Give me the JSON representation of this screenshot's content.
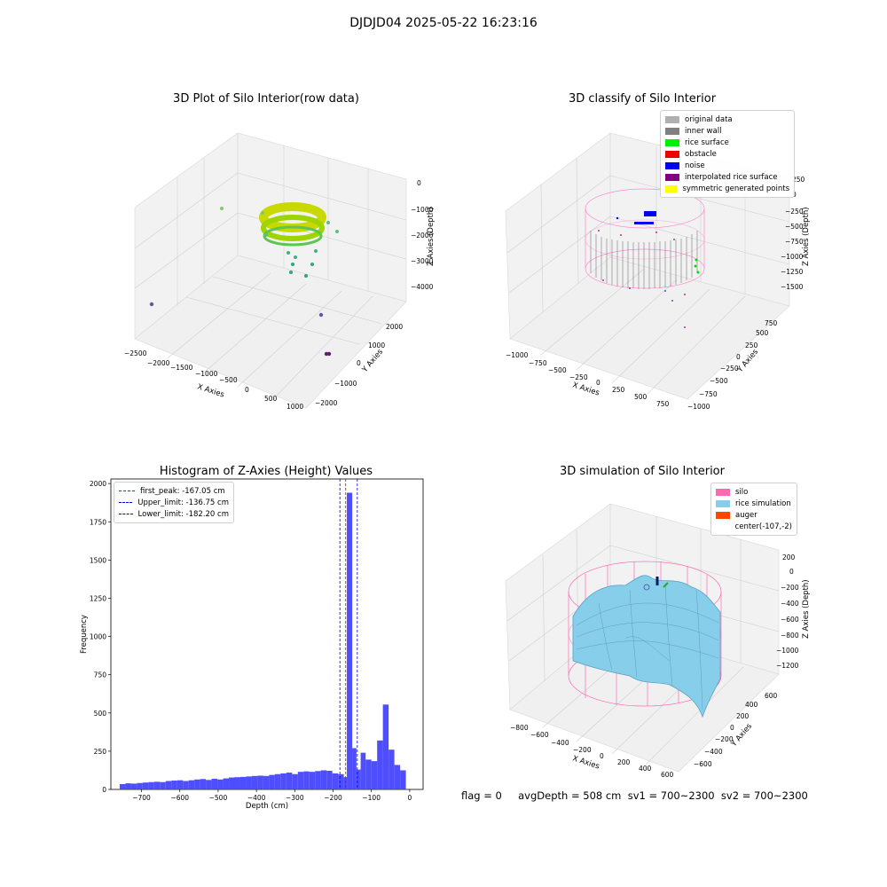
{
  "suptitle": "DJDJD04 2025-05-22 16:23:16",
  "panels": {
    "raw": {
      "title": "3D Plot of Silo Interior(row data)",
      "xlabel": "X Axies",
      "ylabel": "Y Axies",
      "zlabel": "Z Axies (Depth)",
      "xticks": [
        "−2500",
        "−2000",
        "−1500",
        "−1000",
        "−500",
        "0",
        "500",
        "1000"
      ],
      "yticks": [
        "−2000",
        "−1000",
        "0",
        "1000",
        "2000"
      ],
      "zticks": [
        "0",
        "−1000",
        "−2000",
        "−3000",
        "−4000"
      ]
    },
    "classify": {
      "title": "3D classify of Silo Interior",
      "xlabel": "X Axies",
      "ylabel": "Y Axies",
      "zlabel": "Z Axies (Depth)",
      "xticks": [
        "−1000",
        "−750",
        "−500",
        "−250",
        "0",
        "250",
        "500",
        "750"
      ],
      "yticks": [
        "−1000",
        "−750",
        "−500",
        "−250",
        "0",
        "250",
        "500",
        "750"
      ],
      "zticks": [
        "250",
        "0",
        "−250",
        "−500",
        "−750",
        "−1000",
        "−1250",
        "−1500"
      ],
      "legend": [
        {
          "label": "original data",
          "color": "#b0b0b0"
        },
        {
          "label": "inner wall",
          "color": "#808080"
        },
        {
          "label": "rice surface",
          "color": "#00ee00"
        },
        {
          "label": "obstacle",
          "color": "#ee0000"
        },
        {
          "label": "noise",
          "color": "#0000ee"
        },
        {
          "label": "interpolated rice surface",
          "color": "#800080"
        },
        {
          "label": "symmetric generated points",
          "color": "#ffff00"
        }
      ]
    },
    "simulation": {
      "title": "3D simulation of Silo Interior",
      "xlabel": "X Axies",
      "ylabel": "Y Axies",
      "zlabel": "Z Axies (Depth)",
      "xticks": [
        "−800",
        "−600",
        "−400",
        "−200",
        "0",
        "200",
        "400",
        "600"
      ],
      "yticks": [
        "−600",
        "−400",
        "−200",
        "0",
        "200",
        "400",
        "600"
      ],
      "zticks": [
        "200",
        "0",
        "−200",
        "−400",
        "−600",
        "−800",
        "−1000",
        "−1200"
      ],
      "legend": [
        {
          "label": "silo",
          "color": "#ff69b4"
        },
        {
          "label": "rice simulation",
          "color": "#87ceeb"
        },
        {
          "label": "auger",
          "color": "#ff4500"
        },
        {
          "label": "center(-107,-2)",
          "color": ""
        }
      ]
    }
  },
  "chart_data": {
    "type": "bar",
    "title": "Histogram of Z-Axies (Height) Values",
    "xlabel": "Depth (cm)",
    "ylabel": "Frequency",
    "xlim": [
      -780,
      35
    ],
    "ylim": [
      0,
      2030
    ],
    "xticks": [
      -700,
      -600,
      -500,
      -400,
      -300,
      -200,
      -100,
      0
    ],
    "yticks": [
      0,
      250,
      500,
      750,
      1000,
      1250,
      1500,
      1750,
      2000
    ],
    "bin_width": 15,
    "bar_color": "#4444ff",
    "bins": [
      {
        "x": -757,
        "v": 35
      },
      {
        "x": -742,
        "v": 40
      },
      {
        "x": -727,
        "v": 38
      },
      {
        "x": -712,
        "v": 42
      },
      {
        "x": -697,
        "v": 45
      },
      {
        "x": -682,
        "v": 48
      },
      {
        "x": -667,
        "v": 50
      },
      {
        "x": -652,
        "v": 48
      },
      {
        "x": -637,
        "v": 55
      },
      {
        "x": -622,
        "v": 58
      },
      {
        "x": -607,
        "v": 60
      },
      {
        "x": -592,
        "v": 55
      },
      {
        "x": -577,
        "v": 60
      },
      {
        "x": -562,
        "v": 65
      },
      {
        "x": -547,
        "v": 68
      },
      {
        "x": -532,
        "v": 62
      },
      {
        "x": -517,
        "v": 70
      },
      {
        "x": -502,
        "v": 65
      },
      {
        "x": -487,
        "v": 72
      },
      {
        "x": -472,
        "v": 78
      },
      {
        "x": -457,
        "v": 80
      },
      {
        "x": -442,
        "v": 82
      },
      {
        "x": -427,
        "v": 85
      },
      {
        "x": -412,
        "v": 88
      },
      {
        "x": -397,
        "v": 90
      },
      {
        "x": -382,
        "v": 88
      },
      {
        "x": -367,
        "v": 95
      },
      {
        "x": -352,
        "v": 100
      },
      {
        "x": -337,
        "v": 105
      },
      {
        "x": -322,
        "v": 110
      },
      {
        "x": -307,
        "v": 100
      },
      {
        "x": -292,
        "v": 115
      },
      {
        "x": -277,
        "v": 118
      },
      {
        "x": -262,
        "v": 115
      },
      {
        "x": -247,
        "v": 120
      },
      {
        "x": -232,
        "v": 125
      },
      {
        "x": -217,
        "v": 122
      },
      {
        "x": -202,
        "v": 105
      },
      {
        "x": -187,
        "v": 100
      },
      {
        "x": -172,
        "v": 80
      },
      {
        "x": -164,
        "v": 1940
      },
      {
        "x": -150,
        "v": 270
      },
      {
        "x": -139,
        "v": 130
      },
      {
        "x": -128,
        "v": 240
      },
      {
        "x": -115,
        "v": 195
      },
      {
        "x": -100,
        "v": 185
      },
      {
        "x": -85,
        "v": 320
      },
      {
        "x": -70,
        "v": 555
      },
      {
        "x": -55,
        "v": 260
      },
      {
        "x": -40,
        "v": 160
      },
      {
        "x": -25,
        "v": 125
      }
    ],
    "lines": [
      {
        "label": "first_peak: -167.05 cm",
        "x": -167.05,
        "color": "#dd0000"
      },
      {
        "label": "Upper_limit: -136.75 cm",
        "x": -136.75,
        "color": "#0000cc"
      },
      {
        "label": "Lower_limit: -182.20 cm",
        "x": -182.2,
        "color": "#0000cc"
      }
    ]
  },
  "footer": "flag = 0     avgDepth = 508 cm  sv1 = 700~2300  sv2 = 700~2300"
}
